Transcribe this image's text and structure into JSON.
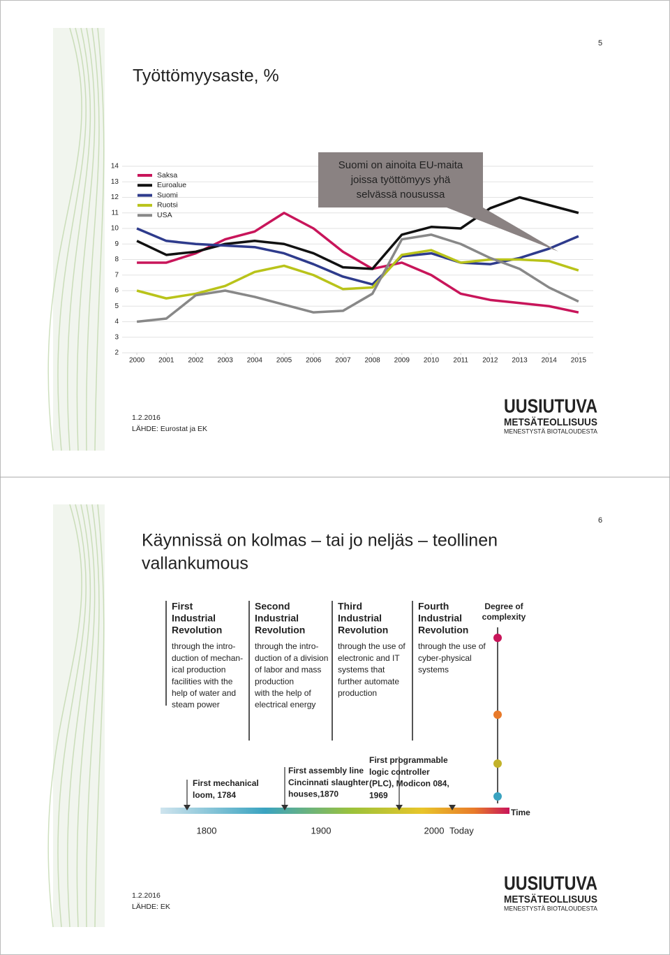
{
  "slides": [
    {
      "page": "5",
      "title": "Työttömyysaste, %",
      "annotation": [
        "Suomi on ainoita EU-maita",
        "joissa työttömyys yhä",
        "selvässä nousussa"
      ],
      "date": "1.2.2016",
      "source": "LÄHDE: Eurostat ja EK",
      "logo": [
        "UUSIUTUVA",
        "METSÄTEOLLISUUS",
        "MENESTYSTÄ BIOTALOUDESTA"
      ]
    },
    {
      "page": "6",
      "title": [
        "Käynnissä on kolmas – tai jo neljäs – teollinen",
        "vallankumous"
      ],
      "infographic": {
        "revolutions": [
          {
            "ordinal": "First",
            "heading": [
              "Industrial",
              "Revolution"
            ],
            "text": [
              "through the intro-",
              "duction of mechan-",
              "ical production",
              "facilities with the",
              "help of water and",
              "steam power"
            ]
          },
          {
            "ordinal": "Second",
            "heading": [
              "Industrial",
              "Revolution"
            ],
            "text": [
              "through the intro-",
              "duction of a division",
              "of labor and mass",
              "production",
              "with the help of",
              "electrical energy"
            ]
          },
          {
            "ordinal": "Third",
            "heading": [
              "Industrial",
              "Revolution"
            ],
            "text": [
              "through the use of",
              "electronic and IT",
              "systems that",
              "further automate",
              "production"
            ]
          },
          {
            "ordinal": "Fourth",
            "heading": [
              "Industrial",
              "Revolution"
            ],
            "text": [
              "through the use of",
              "cyber-physical",
              "systems"
            ]
          }
        ],
        "complexity": [
          "Degree of",
          "complexity"
        ],
        "events": [
          [
            "First mechanical",
            "loom, 1784"
          ],
          [
            "First assembly line",
            "Cincinnati slaughter",
            "houses,1870"
          ],
          [
            "First programmable",
            "logic controller",
            "(PLC), Modicon 084,",
            "1969"
          ]
        ],
        "years": [
          "1800",
          "1900",
          "2000"
        ],
        "today": "Today",
        "time": "Time"
      },
      "date": "1.2.2016",
      "source": "LÄHDE: EK",
      "logo": [
        "UUSIUTUVA",
        "METSÄTEOLLISUUS",
        "MENESTYSTÄ BIOTALOUDESTA"
      ]
    }
  ],
  "chart_data": {
    "type": "line",
    "x": [
      2000,
      2001,
      2002,
      2003,
      2004,
      2005,
      2006,
      2007,
      2008,
      2009,
      2010,
      2011,
      2012,
      2013,
      2014,
      2015
    ],
    "series": [
      {
        "name": "Saksa",
        "color": "#c8155a",
        "values": [
          7.8,
          7.8,
          8.4,
          9.3,
          9.8,
          11.0,
          10.0,
          8.5,
          7.4,
          7.8,
          7.0,
          5.8,
          5.4,
          5.2,
          5.0,
          4.6
        ]
      },
      {
        "name": "Euroalue",
        "color": "#111111",
        "values": [
          9.2,
          8.3,
          8.5,
          9.0,
          9.2,
          9.0,
          8.4,
          7.5,
          7.4,
          9.6,
          10.1,
          10.0,
          11.3,
          12.0,
          11.5,
          11.0
        ]
      },
      {
        "name": "Suomi",
        "color": "#2e3b8c",
        "values": [
          10.0,
          9.2,
          9.0,
          8.9,
          8.8,
          8.4,
          7.7,
          6.9,
          6.4,
          8.2,
          8.4,
          7.8,
          7.7,
          8.1,
          8.7,
          9.5
        ]
      },
      {
        "name": "Ruotsi",
        "color": "#b9c31a",
        "values": [
          6.0,
          5.5,
          5.8,
          6.3,
          7.2,
          7.6,
          7.0,
          6.1,
          6.2,
          8.3,
          8.6,
          7.8,
          8.0,
          8.0,
          7.9,
          7.3
        ]
      },
      {
        "name": "USA",
        "color": "#888888",
        "values": [
          4.0,
          4.2,
          5.7,
          6.0,
          5.6,
          5.1,
          4.6,
          4.7,
          5.8,
          9.3,
          9.6,
          9.0,
          8.1,
          7.4,
          6.2,
          5.3
        ]
      }
    ],
    "xlim": [
      1999.5,
      2015.5
    ],
    "xticks": [
      2000,
      2001,
      2002,
      2003,
      2004,
      2005,
      2006,
      2007,
      2008,
      2009,
      2010,
      2011,
      2012,
      2013,
      2014,
      2015
    ],
    "ylim": [
      2,
      14
    ],
    "yticks": [
      2,
      3,
      4,
      5,
      6,
      7,
      8,
      9,
      10,
      11,
      12,
      13,
      14
    ],
    "grid": true
  }
}
